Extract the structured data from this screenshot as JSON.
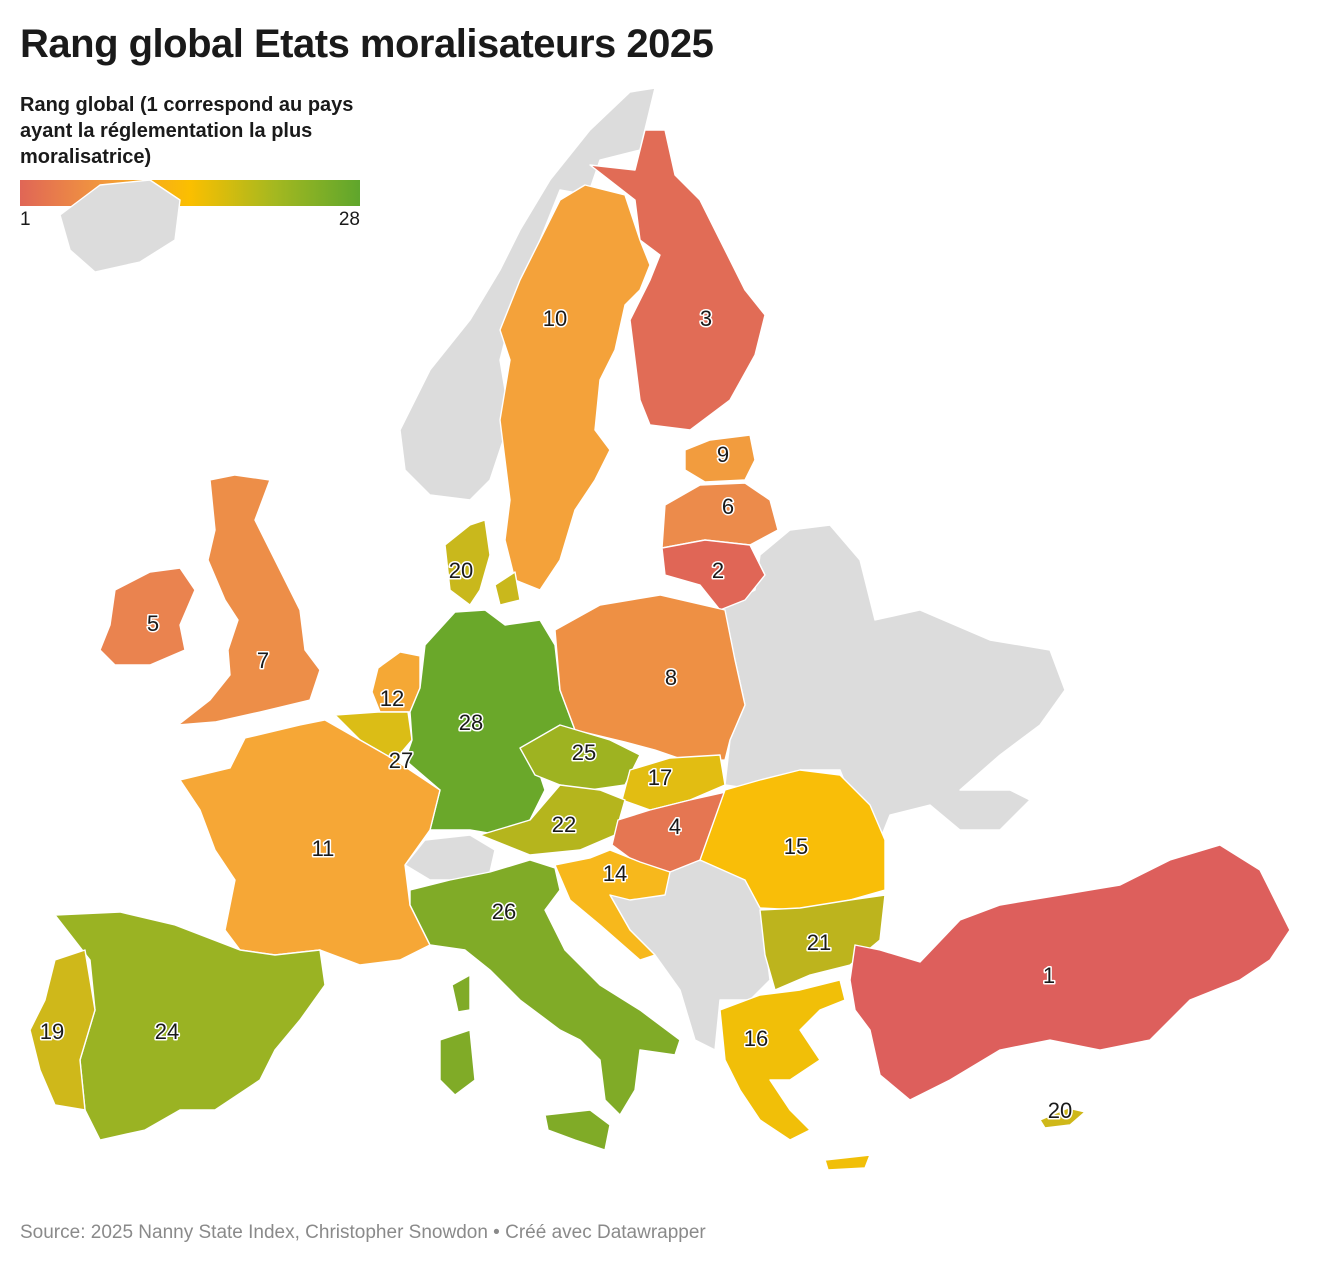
{
  "title": "Rang global Etats moralisateurs 2025",
  "legend": {
    "title": "Rang global (1 correspond au pays ayant la réglementation la plus moralisatrice)",
    "min_label": "1",
    "max_label": "28",
    "scale_colors": [
      "#e06656",
      "#f2993d",
      "#fbbf00",
      "#a4b820",
      "#5fa62c"
    ]
  },
  "no_data_color": "#dcdcdc",
  "countries": [
    {
      "name": "Finlande",
      "rank": 3,
      "label": "3",
      "color": "#e16c56"
    },
    {
      "name": "Suède",
      "rank": 10,
      "label": "10",
      "color": "#f4a23a"
    },
    {
      "name": "Estonie",
      "rank": 9,
      "label": "9",
      "color": "#f29c3e"
    },
    {
      "name": "Lettonie",
      "rank": 6,
      "label": "6",
      "color": "#ec8b4b"
    },
    {
      "name": "Lituanie",
      "rank": 2,
      "label": "2",
      "color": "#e06656"
    },
    {
      "name": "Danemark",
      "rank": 20,
      "label": "20",
      "color": "#c9b81c"
    },
    {
      "name": "Irlande",
      "rank": 5,
      "label": "5",
      "color": "#ea834f"
    },
    {
      "name": "Royaume-Uni",
      "rank": 7,
      "label": "7",
      "color": "#ed8e48"
    },
    {
      "name": "Pays-Bas",
      "rank": 12,
      "label": "12",
      "color": "#f5a835"
    },
    {
      "name": "Belgique",
      "rank": 27,
      "label": "27",
      "color": "#dbbd16"
    },
    {
      "name": "Allemagne",
      "rank": 28,
      "label": "28",
      "color": "#6aa82a"
    },
    {
      "name": "Pologne",
      "rank": 8,
      "label": "8",
      "color": "#ee9044"
    },
    {
      "name": "Tchéquie",
      "rank": 25,
      "label": "25",
      "color": "#9eb321"
    },
    {
      "name": "Slovaquie",
      "rank": 17,
      "label": "17",
      "color": "#e2bd12"
    },
    {
      "name": "Autriche",
      "rank": 22,
      "label": "22",
      "color": "#b5b51d"
    },
    {
      "name": "Hongrie",
      "rank": 4,
      "label": "4",
      "color": "#e57652"
    },
    {
      "name": "France",
      "rank": 11,
      "label": "11",
      "color": "#f6a736"
    },
    {
      "name": "Slovénie / Croatie",
      "rank": 14,
      "label": "14",
      "color": "#f7b81c"
    },
    {
      "name": "Roumanie",
      "rank": 15,
      "label": "15",
      "color": "#f9be08"
    },
    {
      "name": "Bulgarie",
      "rank": 21,
      "label": "21",
      "color": "#bdb41d"
    },
    {
      "name": "Italie",
      "rank": 26,
      "label": "26",
      "color": "#80ab27"
    },
    {
      "name": "Espagne",
      "rank": 24,
      "label": "24",
      "color": "#9ab323"
    },
    {
      "name": "Portugal",
      "rank": 19,
      "label": "19",
      "color": "#cfb81a"
    },
    {
      "name": "Grèce",
      "rank": 16,
      "label": "16",
      "color": "#f1bf08"
    },
    {
      "name": "Turquie",
      "rank": 1,
      "label": "1",
      "color": "#dd5f5c"
    },
    {
      "name": "Chypre",
      "rank": 20,
      "label": "20",
      "color": "#cfb81a"
    }
  ],
  "source": "Source: 2025 Nanny State Index, Christopher Snowdon • Créé avec Datawrapper"
}
